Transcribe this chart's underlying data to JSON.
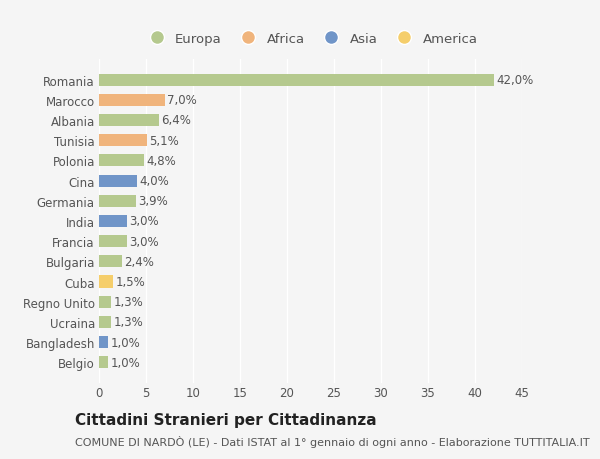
{
  "countries": [
    "Romania",
    "Marocco",
    "Albania",
    "Tunisia",
    "Polonia",
    "Cina",
    "Germania",
    "India",
    "Francia",
    "Bulgaria",
    "Cuba",
    "Regno Unito",
    "Ucraina",
    "Bangladesh",
    "Belgio"
  ],
  "values": [
    42.0,
    7.0,
    6.4,
    5.1,
    4.8,
    4.0,
    3.9,
    3.0,
    3.0,
    2.4,
    1.5,
    1.3,
    1.3,
    1.0,
    1.0
  ],
  "labels": [
    "42,0%",
    "7,0%",
    "6,4%",
    "5,1%",
    "4,8%",
    "4,0%",
    "3,9%",
    "3,0%",
    "3,0%",
    "2,4%",
    "1,5%",
    "1,3%",
    "1,3%",
    "1,0%",
    "1,0%"
  ],
  "continents": [
    "Europa",
    "Africa",
    "Europa",
    "Africa",
    "Europa",
    "Asia",
    "Europa",
    "Asia",
    "Europa",
    "Europa",
    "America",
    "Europa",
    "Europa",
    "Asia",
    "Europa"
  ],
  "continent_colors": {
    "Europa": "#b5c98e",
    "Africa": "#f0b47c",
    "Asia": "#7095c8",
    "America": "#f5ce6b"
  },
  "legend_order": [
    "Europa",
    "Africa",
    "Asia",
    "America"
  ],
  "xlim": [
    0,
    45
  ],
  "xticks": [
    0,
    5,
    10,
    15,
    20,
    25,
    30,
    35,
    40,
    45
  ],
  "title": "Cittadini Stranieri per Cittadinanza",
  "subtitle": "COMUNE DI NARDÒ (LE) - Dati ISTAT al 1° gennaio di ogni anno - Elaborazione TUTTITALIA.IT",
  "background_color": "#f5f5f5",
  "bar_height": 0.6,
  "label_fontsize": 8.5,
  "title_fontsize": 11,
  "subtitle_fontsize": 8,
  "ytick_fontsize": 8.5,
  "xtick_fontsize": 8.5,
  "legend_fontsize": 9.5,
  "text_color": "#555555",
  "grid_color": "#ffffff"
}
